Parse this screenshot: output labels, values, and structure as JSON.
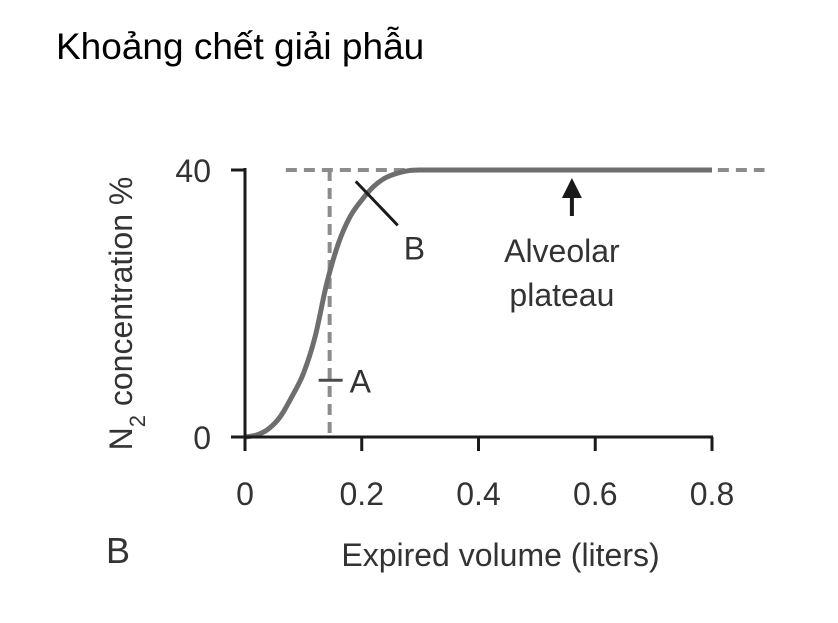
{
  "page": {
    "title": "Khoảng chết giải phẫu",
    "panel_letter": "B"
  },
  "chart_data": {
    "type": "line",
    "title": "",
    "xlabel": "Expired volume (liters)",
    "ylabel_main": "N",
    "ylabel_sub": "2",
    "ylabel_rest": " concentration %",
    "xlim": [
      0,
      0.8
    ],
    "ylim": [
      0,
      40
    ],
    "x_ticks": [
      0,
      0.2,
      0.4,
      0.6,
      0.8
    ],
    "x_tick_labels": [
      "0",
      "0.2",
      "0.4",
      "0.6",
      "0.8"
    ],
    "y_ticks": [
      0,
      40
    ],
    "y_tick_labels": [
      "0",
      "40"
    ],
    "grid": false,
    "series": [
      {
        "x": [
          0,
          0.02,
          0.04,
          0.06,
          0.08,
          0.1,
          0.12,
          0.14,
          0.16,
          0.18,
          0.2,
          0.22,
          0.24,
          0.26,
          0.28,
          0.3,
          0.35,
          0.4,
          0.5,
          0.6,
          0.7,
          0.8
        ],
        "y": [
          0,
          0.3,
          1.2,
          3,
          6,
          9.5,
          15,
          23,
          29,
          33,
          35.5,
          37.5,
          38.8,
          39.5,
          39.9,
          40,
          40,
          40,
          40,
          40,
          40,
          40
        ],
        "color": "#6e6e6e"
      }
    ],
    "reference_lines": [
      {
        "orientation": "horizontal",
        "value": 40,
        "from": 0.07,
        "to": 0.89,
        "style": "dashed",
        "color": "#8c8c8c"
      },
      {
        "orientation": "vertical",
        "value": 0.145,
        "from": 0,
        "to": 40,
        "style": "dashed",
        "color": "#8c8c8c"
      }
    ],
    "annotations": [
      {
        "text": "A",
        "x": 0.145,
        "y": 8.5
      },
      {
        "text": "B",
        "x": 0.2,
        "y": 36.5
      },
      {
        "text_line1": "Alveolar",
        "text_line2": "plateau",
        "x": 0.56,
        "y": 40
      }
    ],
    "colors": {
      "axis": "#1a1a1a",
      "curve": "#6e6e6e",
      "dash": "#8c8c8c",
      "text": "#333333"
    }
  }
}
